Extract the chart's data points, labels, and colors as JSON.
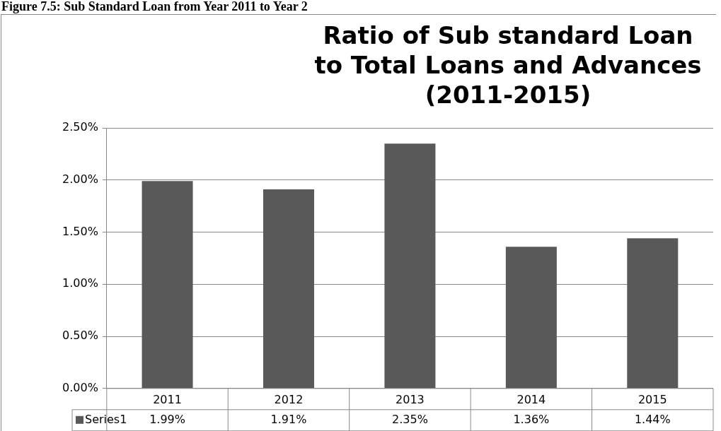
{
  "chart_data": {
    "type": "bar",
    "title": "Ratio of Sub standard Loan to Total Loans and Advances (2011-2015)",
    "subtitle": "Figure 7.5: Sub Standard Loan from Year 2011 to Year 2",
    "categories": [
      "2011",
      "2012",
      "2013",
      "2014",
      "2015"
    ],
    "series": [
      {
        "name": "Series1",
        "color": "#595959",
        "values": [
          1.99,
          1.91,
          2.35,
          1.36,
          1.44
        ],
        "value_labels": [
          "1.99%",
          "1.91%",
          "2.35%",
          "1.36%",
          "1.44%"
        ]
      }
    ],
    "ylim": [
      0,
      2.5
    ],
    "yticks": [
      {
        "value": 0,
        "label": "0.00%"
      },
      {
        "value": 0.5,
        "label": "0.50%"
      },
      {
        "value": 1,
        "label": "1.00%"
      },
      {
        "value": 1.5,
        "label": "1.50%"
      },
      {
        "value": 2,
        "label": "2.00%"
      },
      {
        "value": 2.5,
        "label": "2.50%"
      }
    ],
    "grid": "y"
  }
}
